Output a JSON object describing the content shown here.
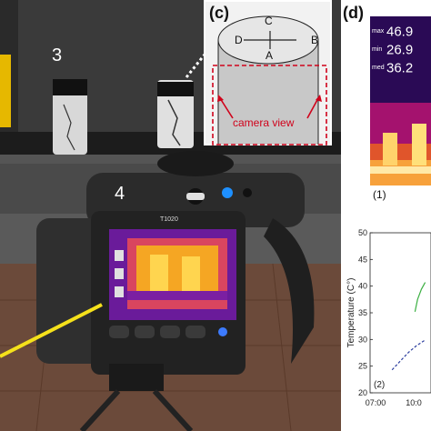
{
  "photo": {
    "label_specimen": "3",
    "label_camera": "4",
    "camera_model": "T1020",
    "colors": {
      "wall": "#3a3a3a",
      "shelf": "#1c1c1c",
      "screen_hot": "#f5a623",
      "screen_cold": "#6a1b9a",
      "pointer_line": "#f5e11b"
    }
  },
  "inset_c": {
    "title": "(c)",
    "point_labels": [
      "C",
      "D",
      "B",
      "A"
    ],
    "camera_view_label": "camera view",
    "accent": "#d0021b"
  },
  "panel_d": {
    "title": "(d)",
    "readouts": [
      {
        "key": "max",
        "value": "46.9"
      },
      {
        "key": "min",
        "value": "26.9"
      },
      {
        "key": "med",
        "value": "36.2"
      }
    ],
    "sub_label": "(1)"
  },
  "chart_data": {
    "type": "line",
    "ylabel": "Temperature (C°)",
    "yticks": [
      "50",
      "45",
      "40",
      "35",
      "30",
      "25",
      "20"
    ],
    "ylim": [
      20,
      50
    ],
    "xticks": [
      "07:00",
      "10:0"
    ],
    "sub_label": "(2)",
    "series": [
      {
        "style": "solid",
        "color": "#3cb043",
        "x": [
          10.1,
          10.3,
          10.6,
          10.9
        ],
        "values": [
          35.2,
          37.5,
          39.4,
          40.7
        ]
      },
      {
        "style": "dashed",
        "color": "#2c3e9f",
        "x": [
          8.3,
          9.0,
          9.6,
          10.2,
          10.9
        ],
        "values": [
          24.3,
          26.1,
          27.6,
          28.8,
          29.9
        ]
      }
    ]
  }
}
